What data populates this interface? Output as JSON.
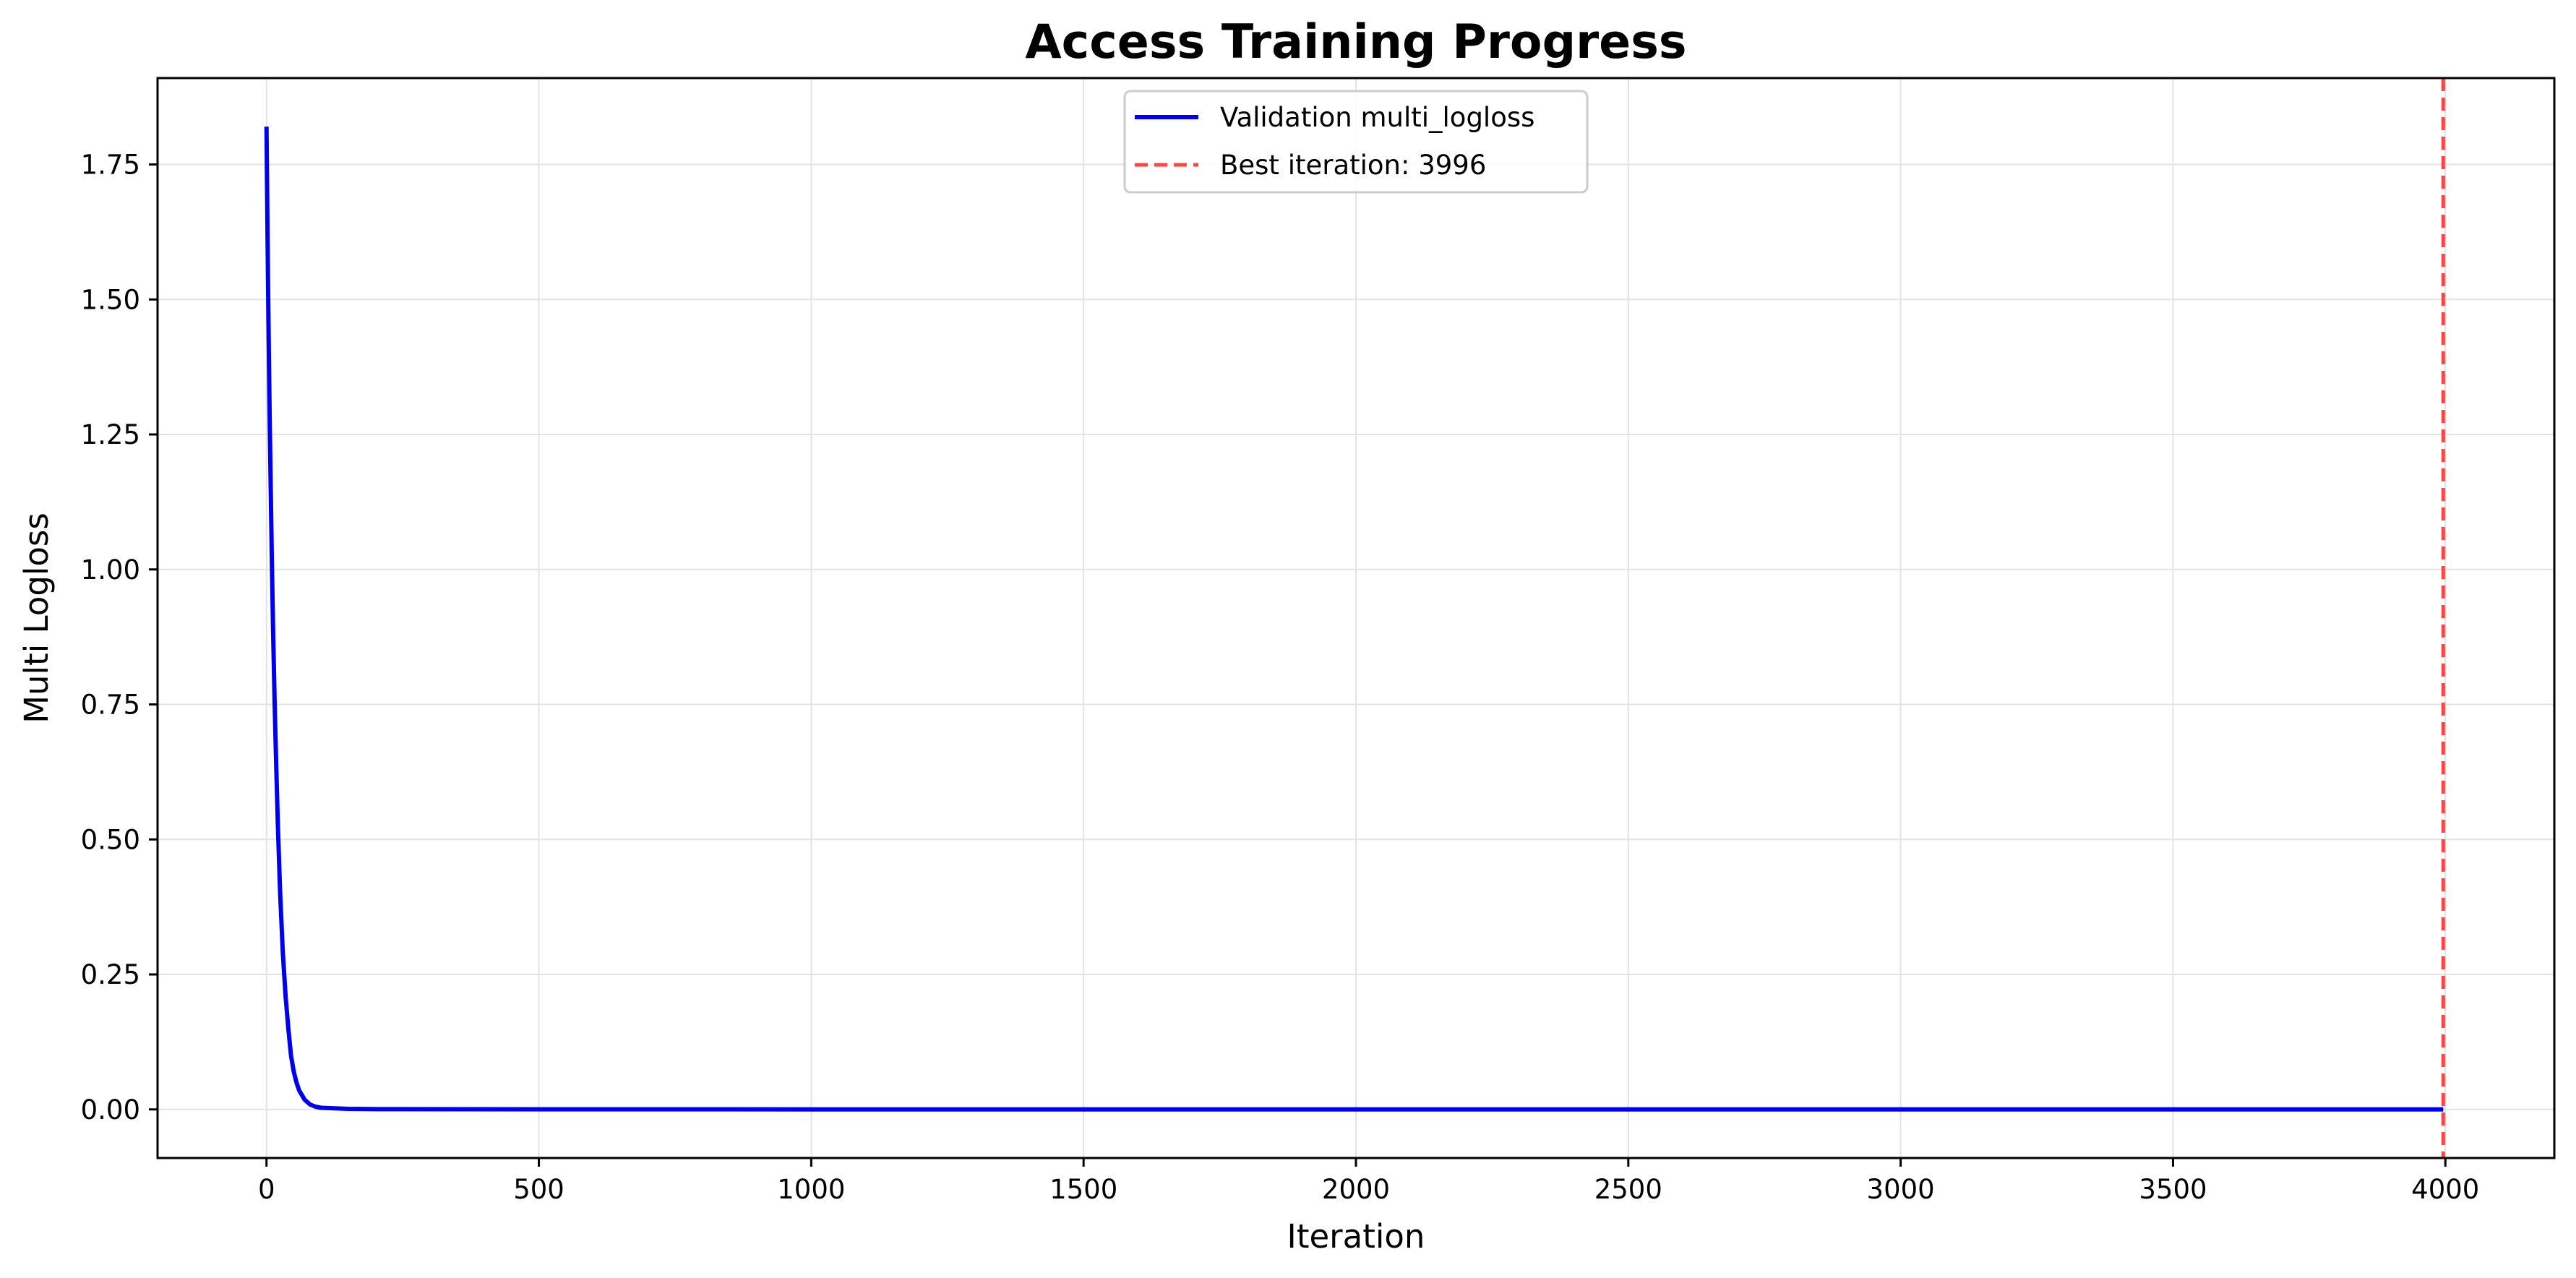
{
  "chart_data": {
    "type": "line",
    "title": "Access Training Progress",
    "xlabel": "Iteration",
    "ylabel": "Multi Logloss",
    "xlim": [
      -200,
      4200
    ],
    "ylim": [
      -0.09,
      1.91
    ],
    "xticks": [
      0,
      500,
      1000,
      1500,
      2000,
      2500,
      3000,
      3500,
      4000
    ],
    "yticks": [
      0.0,
      0.25,
      0.5,
      0.75,
      1.0,
      1.25,
      1.5,
      1.75
    ],
    "ytick_labels": [
      "0.00",
      "0.25",
      "0.50",
      "0.75",
      "1.00",
      "1.25",
      "1.50",
      "1.75"
    ],
    "grid": true,
    "legend_position": "top-center",
    "series": [
      {
        "name": "Validation multi_logloss",
        "color": "#0000ee",
        "style": "solid",
        "x": [
          0,
          2,
          4,
          6,
          8,
          10,
          12,
          15,
          18,
          21,
          25,
          30,
          35,
          40,
          45,
          50,
          55,
          60,
          70,
          80,
          90,
          100,
          150,
          200,
          500,
          1000,
          1500,
          2000,
          2500,
          3000,
          3500,
          3996
        ],
        "y": [
          1.82,
          1.61,
          1.43,
          1.27,
          1.13,
          1.0,
          0.89,
          0.75,
          0.63,
          0.52,
          0.4,
          0.29,
          0.21,
          0.15,
          0.1,
          0.07,
          0.05,
          0.035,
          0.018,
          0.009,
          0.005,
          0.003,
          0.001,
          0.0005,
          0.0002,
          0.0001,
          0.0001,
          0.0001,
          0.0001,
          0.0001,
          0.0001,
          0.0001
        ]
      }
    ],
    "reference_lines": [
      {
        "name": "Best iteration: 3996",
        "x": 3996,
        "color": "#ff4444",
        "style": "dashed"
      }
    ]
  }
}
